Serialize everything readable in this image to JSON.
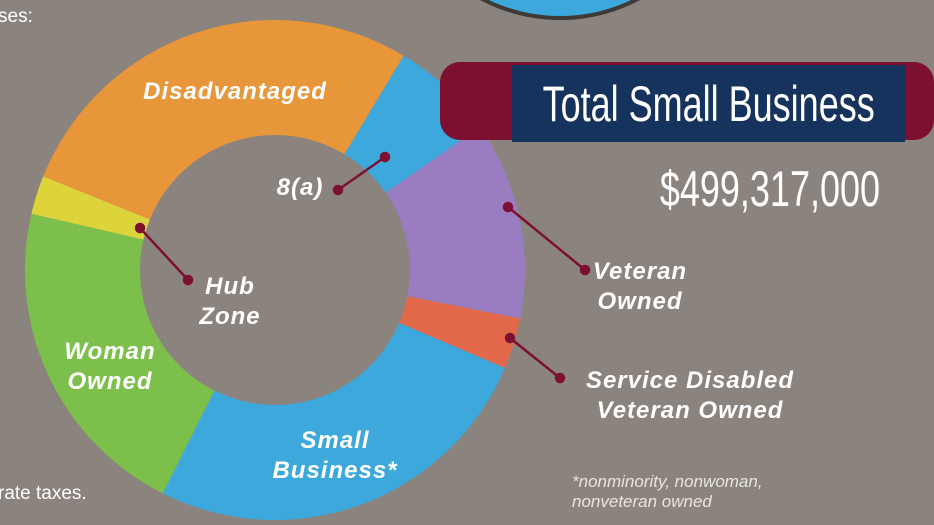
{
  "chart_data": {
    "type": "donut",
    "title": "Total Small Business",
    "subtitle": "$499,317,000",
    "categories": [
      "Disadvantaged",
      "8(a)",
      "Veteran Owned",
      "Service Disabled Veteran Owned",
      "Small Business*",
      "Woman Owned",
      "Hub Zone"
    ],
    "values": [
      27.5,
      6.7,
      12.8,
      3.3,
      26,
      21.2,
      2.5
    ],
    "colors": [
      "#e8963a",
      "#3da8dc",
      "#9a7cc0",
      "#e2684a",
      "#3da8dc",
      "#7dbf4b",
      "#ddd43c"
    ],
    "annotations": [
      "*nonminority, nonwoman, nonveteran owned"
    ],
    "side_text": [
      "ses:",
      "rate taxes."
    ]
  }
}
